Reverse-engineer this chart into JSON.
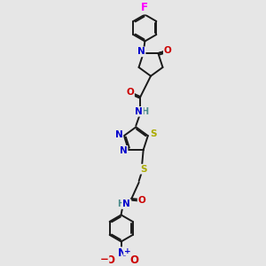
{
  "bg_color": "#e6e6e6",
  "bond_color": "#1a1a1a",
  "bond_width": 1.4,
  "atom_colors": {
    "F": "#ff00ff",
    "N": "#0000cc",
    "O": "#cc0000",
    "S": "#aaaa00",
    "H": "#4a8a8a",
    "C": "#1a1a1a"
  },
  "font_size": 7.5,
  "fig_width": 3.0,
  "fig_height": 3.0,
  "dpi": 100,
  "xlim": [
    0,
    10
  ],
  "ylim": [
    -16,
    1
  ]
}
